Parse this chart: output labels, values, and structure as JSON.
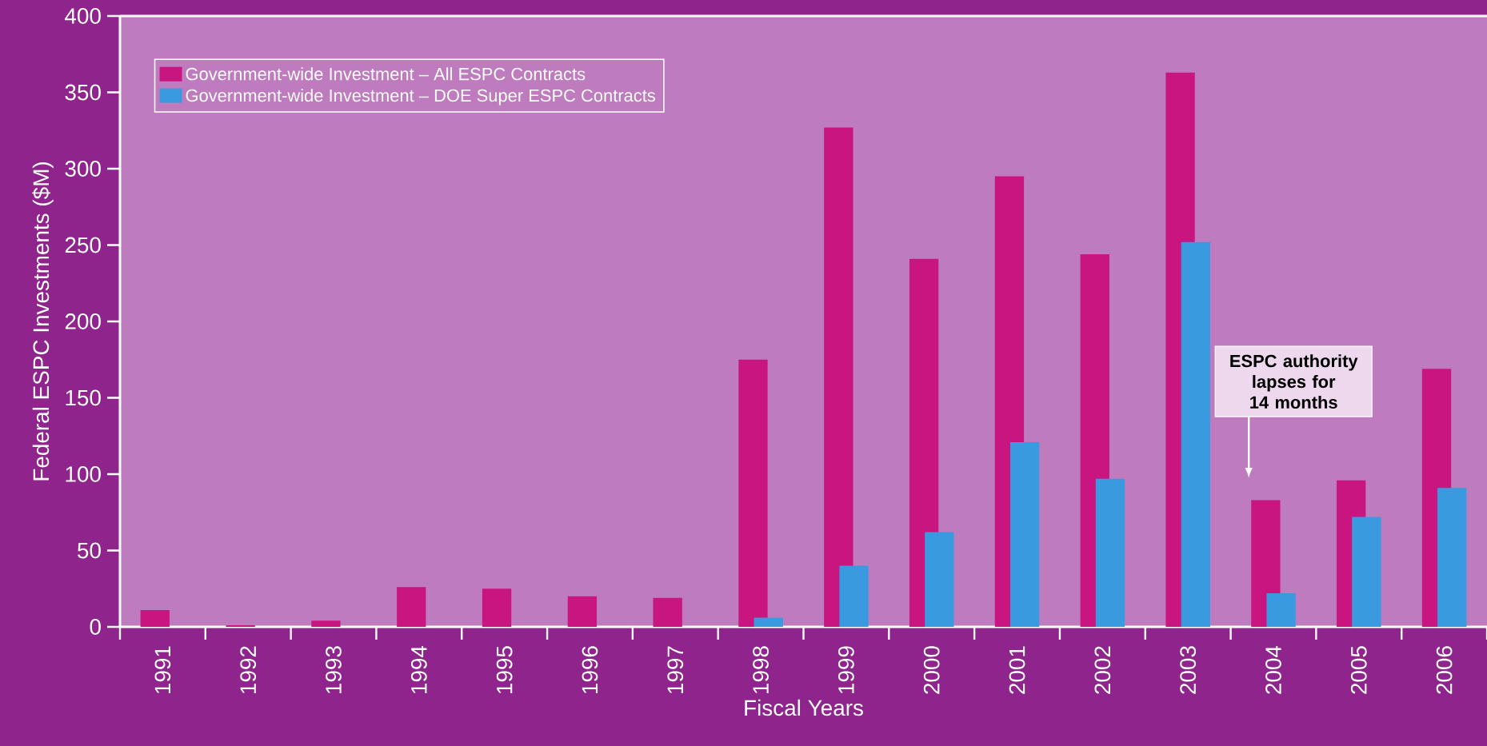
{
  "chart_data": {
    "type": "bar",
    "xlabel": "Fiscal Years",
    "ylabel": "Federal ESPC Investments ($M)",
    "categories": [
      "1991",
      "1992",
      "1993",
      "1994",
      "1995",
      "1996",
      "1997",
      "1998",
      "1999",
      "2000",
      "2001",
      "2002",
      "2003",
      "2004",
      "2005",
      "2006"
    ],
    "series": [
      {
        "name": "Government-wide Investment – All ESPC Contracts",
        "color": "#c8157f",
        "values": [
          11,
          1,
          4,
          26,
          25,
          20,
          19,
          175,
          327,
          241,
          295,
          244,
          363,
          83,
          96,
          169
        ]
      },
      {
        "name": "Government-wide Investment – DOE Super ESPC Contracts",
        "color": "#3a9ae0",
        "values": [
          null,
          null,
          null,
          null,
          null,
          null,
          null,
          6,
          40,
          62,
          121,
          97,
          252,
          22,
          72,
          91
        ]
      }
    ],
    "ylim": [
      0,
      400
    ],
    "yticks": [
      0,
      50,
      100,
      150,
      200,
      250,
      300,
      350,
      400
    ],
    "grid": false,
    "legend": "top left",
    "annotations": [
      "ESPC authority lapses for 14 months"
    ]
  }
}
